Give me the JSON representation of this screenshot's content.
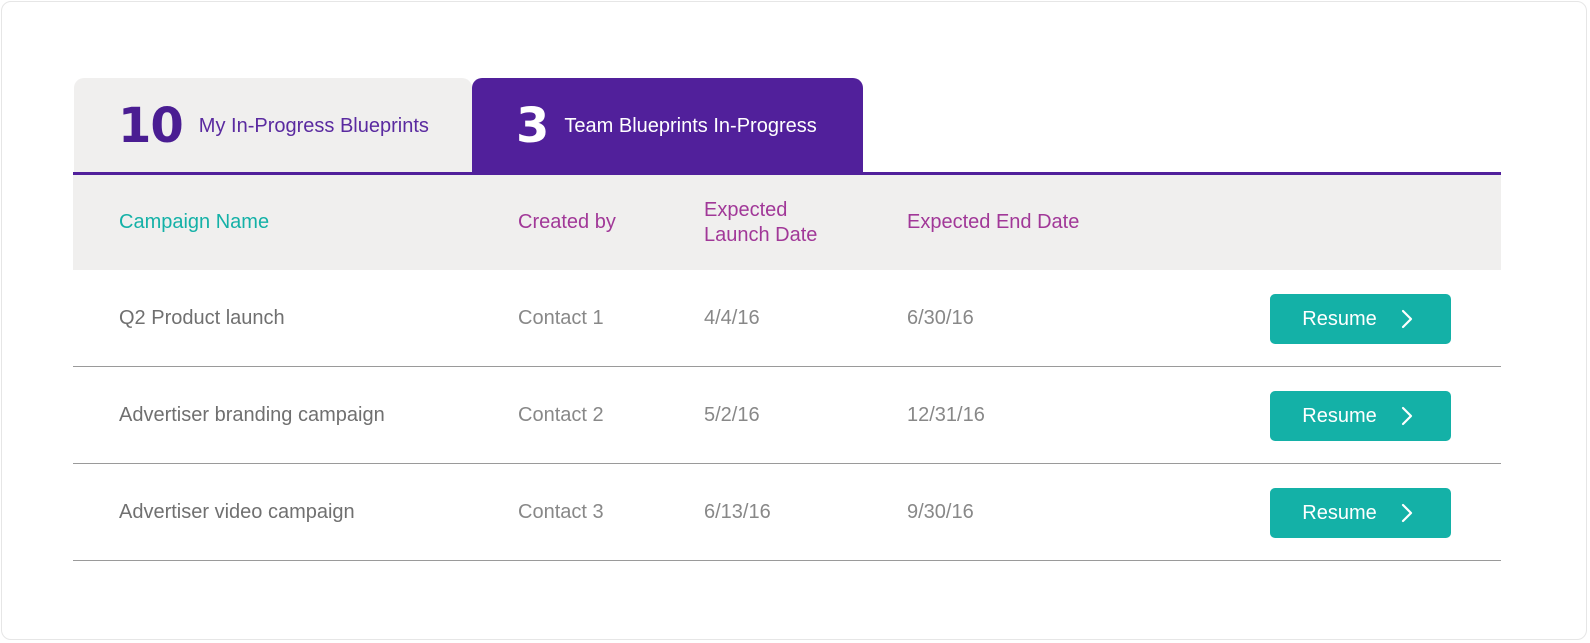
{
  "tabs": {
    "mine": {
      "count": "10",
      "label": "My In-Progress Blueprints"
    },
    "team": {
      "count": "3",
      "label": "Team Blueprints In-Progress"
    }
  },
  "table": {
    "headers": {
      "campaign_name": "Campaign Name",
      "created_by": "Created by",
      "expected_launch_date": "Expected Launch Date",
      "expected_end_date": "Expected End Date"
    },
    "rows": [
      {
        "campaign": "Q2 Product launch",
        "created_by": "Contact 1",
        "launch": "4/4/16",
        "end": "6/30/16",
        "action": "Resume"
      },
      {
        "campaign": "Advertiser branding campaign",
        "created_by": "Contact 2",
        "launch": "5/2/16",
        "end": "12/31/16",
        "action": "Resume"
      },
      {
        "campaign": "Advertiser video campaign",
        "created_by": "Contact 3",
        "launch": "6/13/16",
        "end": "9/30/16",
        "action": "Resume"
      }
    ]
  },
  "colors": {
    "brand_purple": "#51209b",
    "teal": "#14b1a7",
    "header_magenta": "#a13898",
    "tab_inactive_bg": "#f0efee"
  },
  "icons": {
    "resume_action": "chevron-right-icon"
  }
}
